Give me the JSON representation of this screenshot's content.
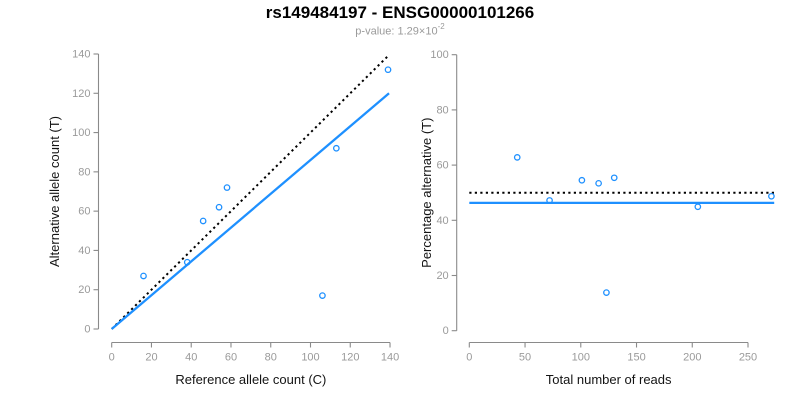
{
  "header": {
    "title": "rs149484197 - ENSG00000101266",
    "pvalue_text": "p-value: 1.29×10",
    "pvalue_exponent": "-2"
  },
  "theme": {
    "background": "#ffffff",
    "accent_blue": "#1e90ff",
    "axis_color": "#8a8a8a",
    "tick_label_color": "#9a9a9a",
    "axis_title_color": "#141414",
    "title_color": "#000000",
    "subtitle_color": "#9a9a9a"
  },
  "chart_data": [
    {
      "name": "allele-counts-plot",
      "type": "scatter",
      "title": "",
      "xlabel": "Reference allele count (C)",
      "ylabel": "Alternative allele count (T)",
      "xlim": [
        0,
        140
      ],
      "ylim": [
        0,
        140
      ],
      "xticks": [
        0,
        20,
        40,
        60,
        80,
        100,
        120,
        140
      ],
      "yticks": [
        0,
        20,
        40,
        60,
        80,
        100,
        120,
        140
      ],
      "grid": false,
      "legend": "none",
      "point_style": "open-circle",
      "point_color": "#1e90ff",
      "points": [
        [
          16,
          27
        ],
        [
          38,
          34
        ],
        [
          46,
          55
        ],
        [
          54,
          62
        ],
        [
          58,
          72
        ],
        [
          106,
          17
        ],
        [
          113,
          92
        ],
        [
          139,
          132
        ]
      ],
      "lines": [
        {
          "name": "identity-line",
          "style": "dotted",
          "color": "#000000",
          "width": 2,
          "x1": 0,
          "y1": 0,
          "x2": 139.5,
          "y2": 139.5
        },
        {
          "name": "fit-line",
          "style": "solid",
          "color": "#1e90ff",
          "width": 2.3,
          "x1": 0,
          "y1": 0,
          "x2": 139.5,
          "y2": 120
        }
      ]
    },
    {
      "name": "percentage-vs-reads-plot",
      "type": "scatter",
      "title": "",
      "xlabel": "Total number of reads",
      "ylabel": "Percentage alternative (T)",
      "xlim": [
        0,
        275
      ],
      "ylim": [
        0,
        100
      ],
      "xticks": [
        0,
        50,
        100,
        150,
        200,
        250
      ],
      "yticks": [
        0,
        20,
        40,
        60,
        80,
        100
      ],
      "grid": false,
      "legend": "none",
      "point_style": "open-circle",
      "point_color": "#1e90ff",
      "points": [
        [
          43,
          62.8
        ],
        [
          72,
          47.2
        ],
        [
          101,
          54.5
        ],
        [
          116,
          53.4
        ],
        [
          130,
          55.4
        ],
        [
          123,
          13.8
        ],
        [
          205,
          44.9
        ],
        [
          271,
          48.7
        ]
      ],
      "lines": [
        {
          "name": "expected-50pct-line",
          "style": "dotted",
          "color": "#000000",
          "width": 2,
          "x1": 0,
          "y1": 50,
          "x2": 273.5,
          "y2": 50
        },
        {
          "name": "mean-percentage-line",
          "style": "solid",
          "color": "#1e90ff",
          "width": 2.3,
          "x1": 0,
          "y1": 46.3,
          "x2": 273.5,
          "y2": 46.3
        }
      ]
    }
  ]
}
